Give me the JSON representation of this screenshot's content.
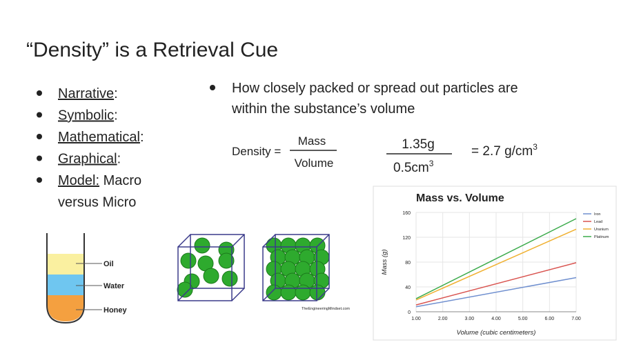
{
  "title": "“Density” is a Retrieval Cue",
  "left_bullets": [
    {
      "term": "Narrative",
      "rest": ":"
    },
    {
      "term": "Symbolic",
      "rest": ":"
    },
    {
      "term": "Mathematical",
      "rest": ":"
    },
    {
      "term": "Graphical",
      "rest": ":"
    },
    {
      "term": "Model:",
      "rest": " Macro",
      "continuation": "versus Micro"
    }
  ],
  "right_bullet": [
    "How closely packed or spread out particles are",
    "within the substance’s volume"
  ],
  "formula": {
    "lhs": "Density =",
    "numerator": "Mass",
    "denominator": "Volume",
    "example_numerator": "1.35g",
    "example_denominator": "0.5cm",
    "example_denominator_sup": "3",
    "result": "= 2.7 g/cm",
    "result_sup": "3"
  },
  "beaker": {
    "labels": [
      "Oil",
      "Water",
      "Honey"
    ]
  },
  "cubes_credit": "TheEngineeringMindset.com",
  "chart": {
    "type": "line",
    "title": "Mass vs. Volume",
    "x_label": "Volume (cubic centimeters)",
    "y_label": "Mass (g)",
    "x": [
      1,
      7
    ],
    "series": [
      {
        "name": "Iron",
        "color": "#6f8fcf",
        "values": [
          8,
          55
        ]
      },
      {
        "name": "Lead",
        "color": "#d9534f",
        "values": [
          11,
          79
        ]
      },
      {
        "name": "Uranium",
        "color": "#f0b030",
        "values": [
          19,
          133
        ]
      },
      {
        "name": "Platinum",
        "color": "#3aaa4a",
        "values": [
          21,
          150
        ]
      }
    ],
    "xlim": [
      1,
      7
    ],
    "ylim": [
      0,
      160
    ],
    "xticks": [
      {
        "value": 1,
        "label": "1.00"
      },
      {
        "value": 2,
        "label": "2.00"
      },
      {
        "value": 3,
        "label": "3.00"
      },
      {
        "value": 4,
        "label": "4.00"
      },
      {
        "value": 5,
        "label": "5.00"
      },
      {
        "value": 6,
        "label": "6.00"
      },
      {
        "value": 7,
        "label": "7.00"
      }
    ],
    "yticks": [
      0,
      40,
      80,
      120,
      160
    ],
    "grid": true
  }
}
